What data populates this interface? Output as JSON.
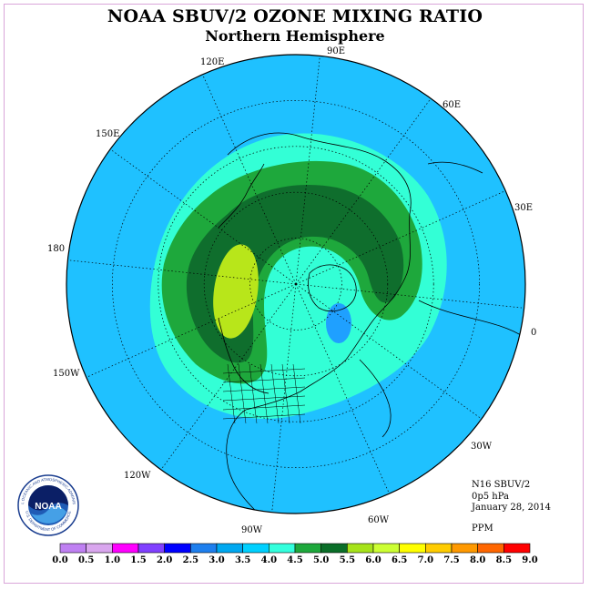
{
  "title": "NOAA SBUV/2 OZONE MIXING RATIO",
  "subtitle": "Northern Hemisphere",
  "longitude_labels": [
    "90E",
    "60E",
    "30E",
    "0",
    "30W",
    "60W",
    "90W",
    "120W",
    "150W",
    "180",
    "150E",
    "120E"
  ],
  "info": {
    "instrument": "N16 SBUV/2",
    "level": "0p5 hPa",
    "date": "January 28, 2014"
  },
  "units": "PPM",
  "colorbar": {
    "labels": [
      "0.0",
      "0.5",
      "1.0",
      "1.5",
      "2.0",
      "2.5",
      "3.0",
      "3.5",
      "4.0",
      "4.5",
      "5.0",
      "5.5",
      "6.0",
      "6.5",
      "7.0",
      "7.5",
      "8.0",
      "8.5",
      "9.0"
    ],
    "colors": [
      "#bf80f2",
      "#d9a6ee",
      "#ff00ff",
      "#8040ff",
      "#0000ff",
      "#1e7fee",
      "#00a8f0",
      "#00d0ff",
      "#33ffdd",
      "#1ea83c",
      "#0a6e28",
      "#a6e31a",
      "#ccff33",
      "#ffff00",
      "#ffcc00",
      "#ff9900",
      "#ff6600",
      "#ff0000",
      "#8b5a2b"
    ]
  },
  "map_colors": {
    "background": "#1fc1ff",
    "level_3_5": "#33ffd6",
    "level_4_0": "#1ea83c",
    "level_4_5": "#0f6e2d",
    "level_5_0": "#b8e61a",
    "low_center": "#1fa0ff",
    "coastline": "#000000"
  },
  "logo": {
    "text": "NOAA",
    "ring_text_top": "NATIONAL OCEANIC AND ATMOSPHERIC ADMINISTRATION",
    "ring_text_bottom": "U.S. DEPARTMENT OF COMMERCE"
  }
}
